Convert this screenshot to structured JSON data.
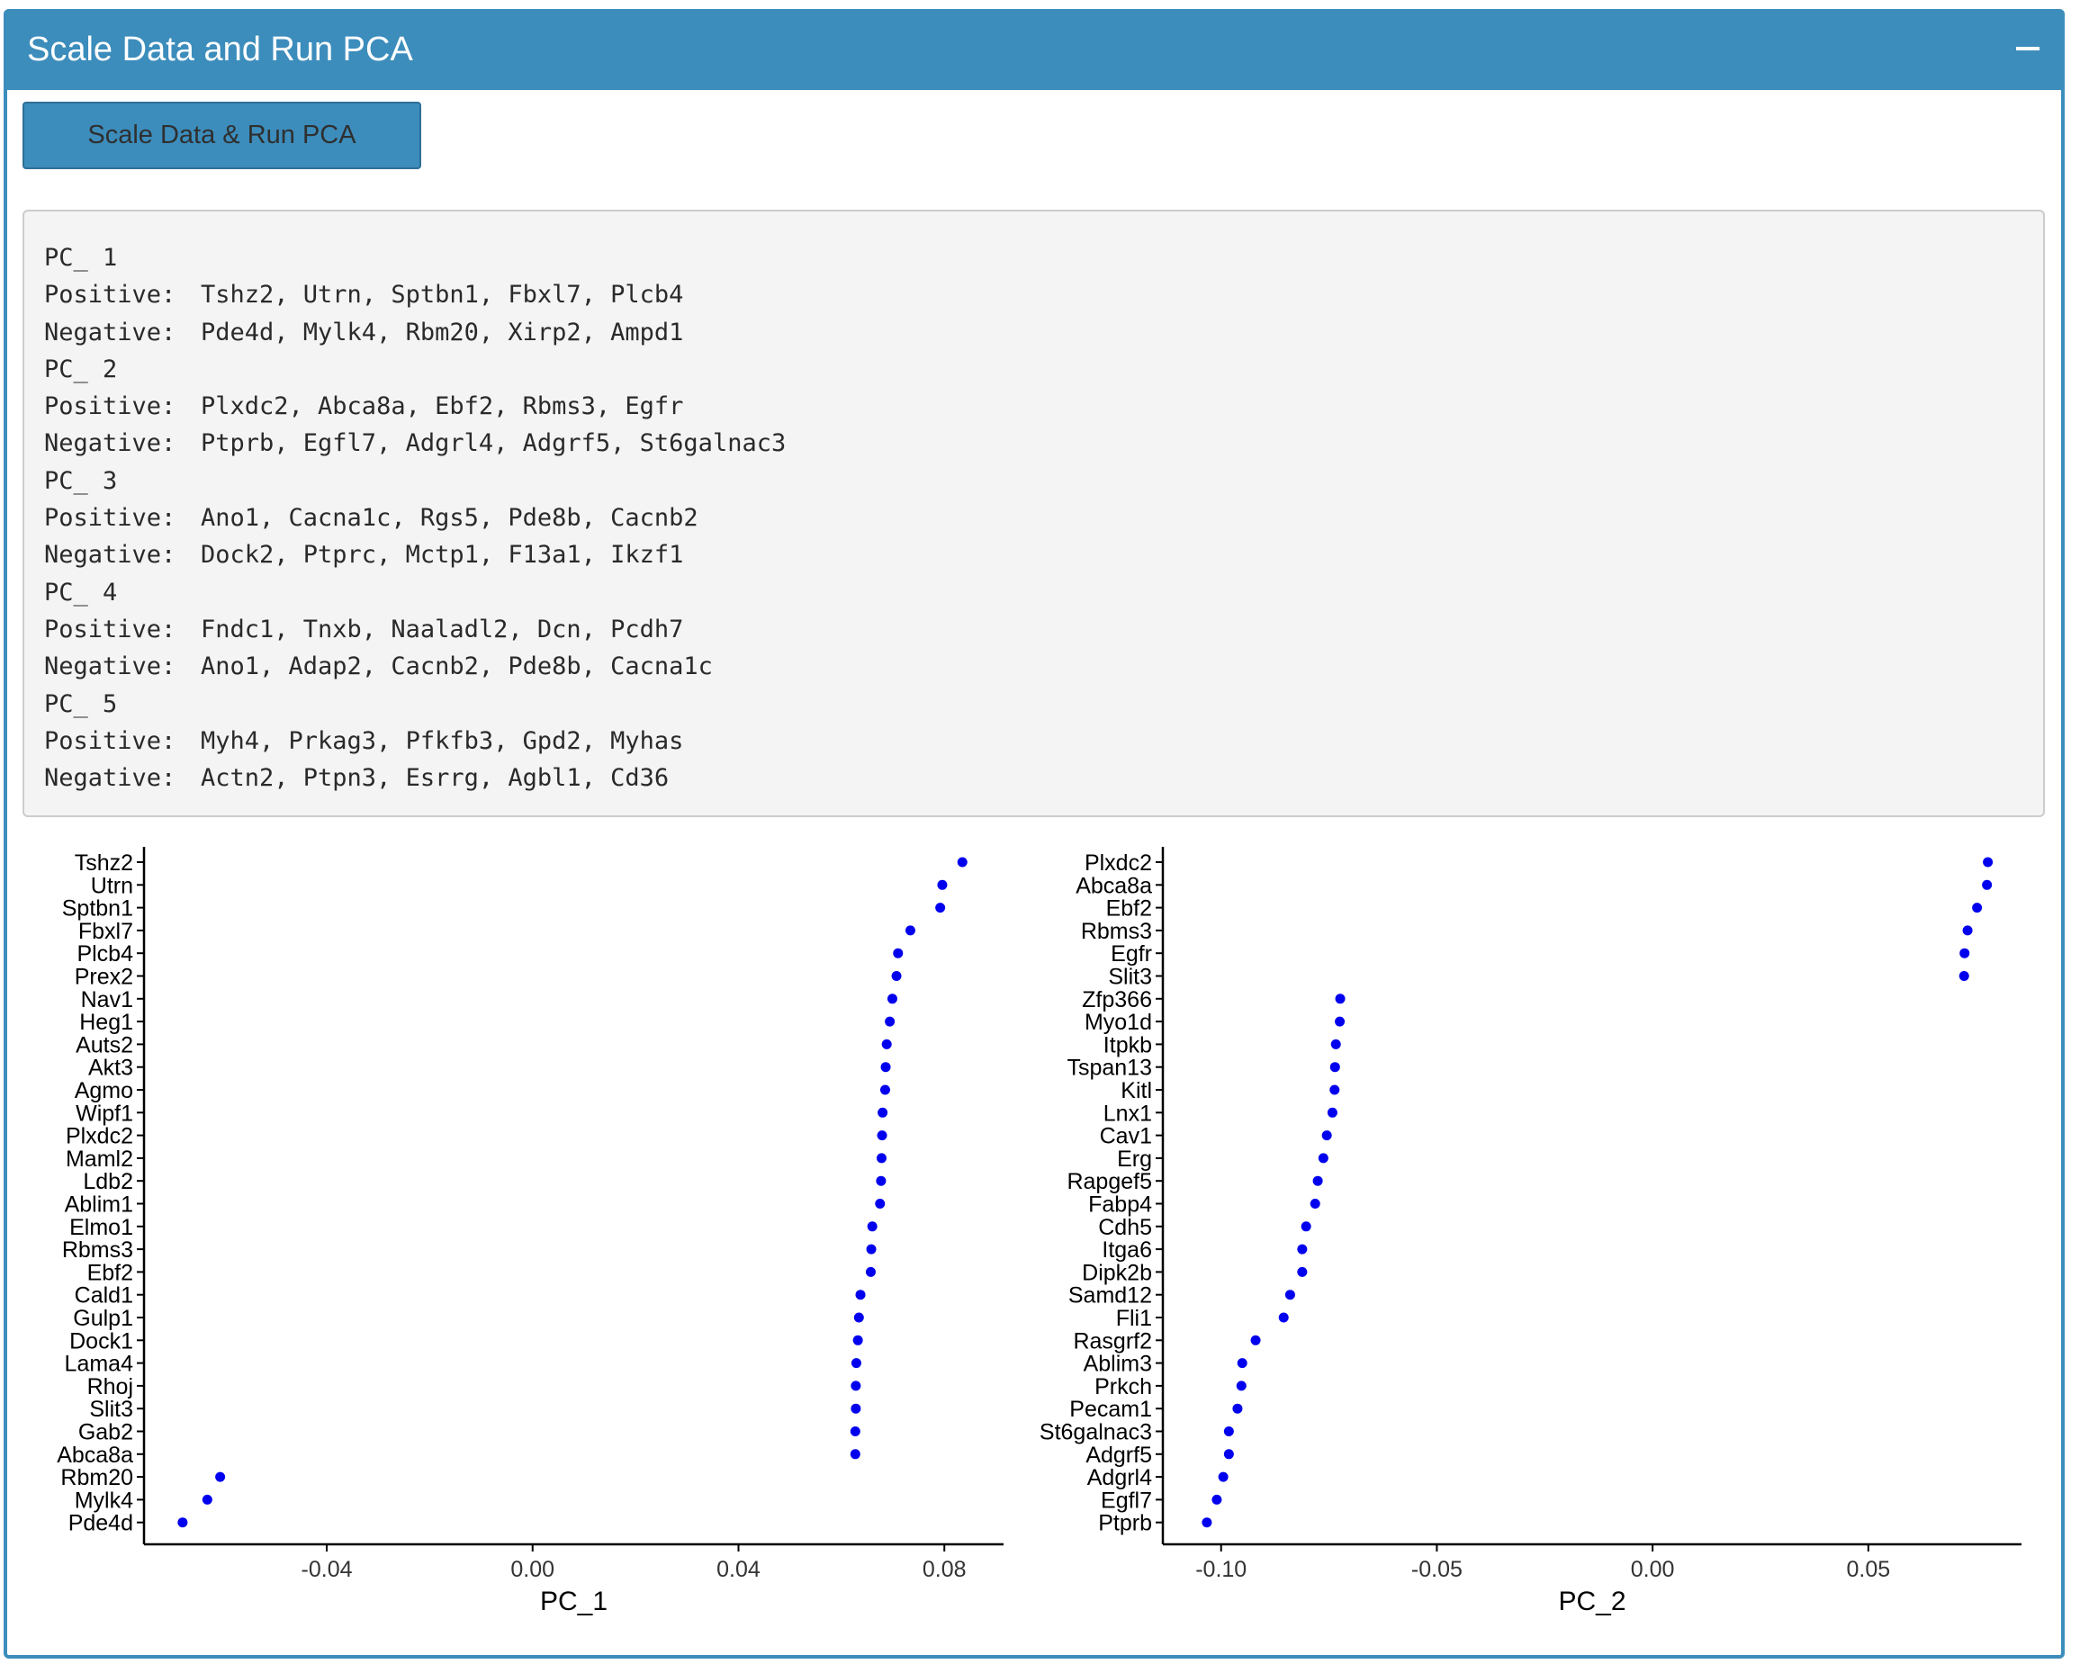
{
  "header": {
    "title": "Scale Data and Run PCA",
    "collapse_icon": "minus-icon"
  },
  "run_button": {
    "label": "Scale Data & Run PCA"
  },
  "pca_output": {
    "components": [
      {
        "pc": "PC_ 1",
        "positive_label": "Positive:",
        "positive": "Tshz2, Utrn, Sptbn1, Fbxl7, Plcb4",
        "negative_label": "Negative:",
        "negative": "Pde4d, Mylk4, Rbm20, Xirp2, Ampd1"
      },
      {
        "pc": "PC_ 2",
        "positive_label": "Positive:",
        "positive": "Plxdc2, Abca8a, Ebf2, Rbms3, Egfr",
        "negative_label": "Negative:",
        "negative": "Ptprb, Egfl7, Adgrl4, Adgrf5, St6galnac3"
      },
      {
        "pc": "PC_ 3",
        "positive_label": "Positive:",
        "positive": "Ano1, Cacna1c, Rgs5, Pde8b, Cacnb2",
        "negative_label": "Negative:",
        "negative": "Dock2, Ptprc, Mctp1, F13a1, Ikzf1"
      },
      {
        "pc": "PC_ 4",
        "positive_label": "Positive:",
        "positive": "Fndc1, Tnxb, Naaladl2, Dcn, Pcdh7",
        "negative_label": "Negative:",
        "negative": "Ano1, Adap2, Cacnb2, Pde8b, Cacna1c"
      },
      {
        "pc": "PC_ 5",
        "positive_label": "Positive:",
        "positive": "Myh4, Prkag3, Pfkfb3, Gpd2, Myhas",
        "negative_label": "Negative:",
        "negative": "Actn2, Ptpn3, Esrrg, Agbl1, Cd36"
      }
    ]
  },
  "chart_data": [
    {
      "type": "scatter",
      "xlabel": "PC_1",
      "ylabel": "",
      "xlim": [
        -0.0755,
        0.0915
      ],
      "xticks": [
        -0.04,
        0.0,
        0.04,
        0.08
      ],
      "xtick_labels": [
        "-0.04",
        "0.00",
        "0.04",
        "0.08"
      ],
      "grid": false,
      "point_color": "#0000ee",
      "categories": [
        "Tshz2",
        "Utrn",
        "Sptbn1",
        "Fbxl7",
        "Plcb4",
        "Prex2",
        "Nav1",
        "Heg1",
        "Auts2",
        "Akt3",
        "Agmo",
        "Wipf1",
        "Plxdc2",
        "Maml2",
        "Ldb2",
        "Ablim1",
        "Elmo1",
        "Rbms3",
        "Ebf2",
        "Cald1",
        "Gulp1",
        "Dock1",
        "Lama4",
        "Rhoj",
        "Slit3",
        "Gab2",
        "Abca8a",
        "Rbm20",
        "Mylk4",
        "Pde4d"
      ],
      "values": [
        0.0835,
        0.0796,
        0.0792,
        0.0734,
        0.071,
        0.0707,
        0.0699,
        0.0694,
        0.0688,
        0.0686,
        0.0685,
        0.068,
        0.0679,
        0.0678,
        0.0677,
        0.0675,
        0.066,
        0.0658,
        0.0657,
        0.0637,
        0.0634,
        0.0632,
        0.0629,
        0.0628,
        0.0628,
        0.0627,
        0.0627,
        -0.0607,
        -0.0632,
        -0.068
      ]
    },
    {
      "type": "scatter",
      "xlabel": "PC_2",
      "ylabel": "",
      "xlim": [
        -0.1135,
        0.0855
      ],
      "xticks": [
        -0.1,
        -0.05,
        0.0,
        0.05
      ],
      "xtick_labels": [
        "-0.10",
        "-0.05",
        "0.00",
        "0.05"
      ],
      "grid": false,
      "point_color": "#0000ee",
      "categories": [
        "Plxdc2",
        "Abca8a",
        "Ebf2",
        "Rbms3",
        "Egfr",
        "Slit3",
        "Zfp366",
        "Myo1d",
        "Itpkb",
        "Tspan13",
        "Kitl",
        "Lnx1",
        "Cav1",
        "Erg",
        "Rapgef5",
        "Fabp4",
        "Cdh5",
        "Itga6",
        "Dipk2b",
        "Samd12",
        "Fli1",
        "Rasgrf2",
        "Ablim3",
        "Prkch",
        "Pecam1",
        "St6galnac3",
        "Adgrf5",
        "Adgrl4",
        "Egfl7",
        "Ptprb"
      ],
      "values": [
        0.0777,
        0.0775,
        0.0752,
        0.073,
        0.0723,
        0.0722,
        -0.0724,
        -0.0725,
        -0.0734,
        -0.0736,
        -0.0737,
        -0.0742,
        -0.0755,
        -0.0763,
        -0.0776,
        -0.0782,
        -0.0803,
        -0.0812,
        -0.0812,
        -0.084,
        -0.0855,
        -0.092,
        -0.0951,
        -0.0953,
        -0.0962,
        -0.0982,
        -0.0982,
        -0.0995,
        -0.101,
        -0.1033
      ]
    }
  ]
}
